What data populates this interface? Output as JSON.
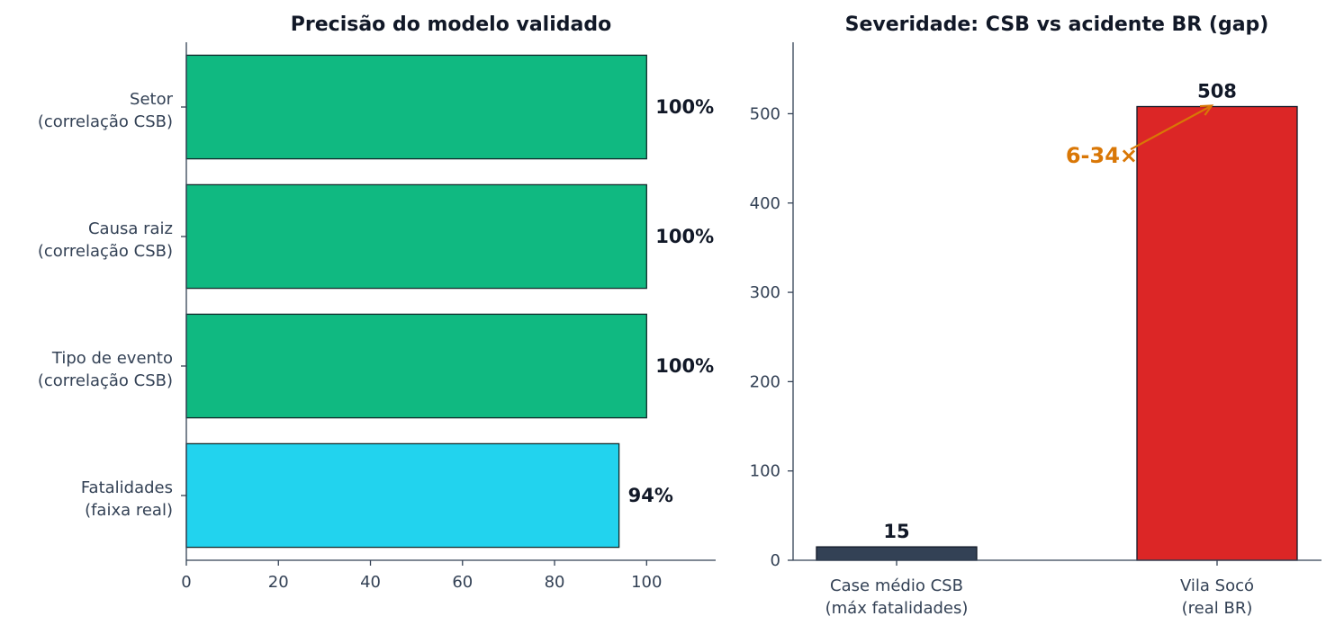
{
  "chart_data": [
    {
      "type": "bar",
      "orientation": "horizontal",
      "title": "Precisão do modelo validado",
      "categories": [
        [
          "Setor",
          "(correlação CSB)"
        ],
        [
          "Causa raiz",
          "(correlação CSB)"
        ],
        [
          "Tipo de evento",
          "(correlação CSB)"
        ],
        [
          "Fatalidades",
          "(faixa real)"
        ]
      ],
      "values": [
        100,
        100,
        100,
        94
      ],
      "value_labels": [
        "100%",
        "100%",
        "100%",
        "94%"
      ],
      "colors": [
        "#10b981",
        "#10b981",
        "#10b981",
        "#22d3ee"
      ],
      "xlim": [
        0,
        115
      ],
      "xticks": [
        0,
        20,
        40,
        60,
        80,
        100
      ],
      "grid": false
    },
    {
      "type": "bar",
      "title": "Severidade: CSB vs acidente BR (gap)",
      "categories": [
        [
          "Case médio CSB",
          "(máx fatalidades)"
        ],
        [
          "Vila Socó",
          "(real BR)"
        ]
      ],
      "values": [
        15,
        508
      ],
      "value_labels": [
        "15",
        "508"
      ],
      "colors": [
        "#334155",
        "#dc2626"
      ],
      "ylim": [
        0,
        580
      ],
      "yticks": [
        0,
        100,
        200,
        300,
        400,
        500
      ],
      "annotation": {
        "text": "6-34×",
        "color": "#d97706",
        "x_index": 1,
        "y": 508,
        "text_y": 440
      },
      "grid": false
    }
  ]
}
